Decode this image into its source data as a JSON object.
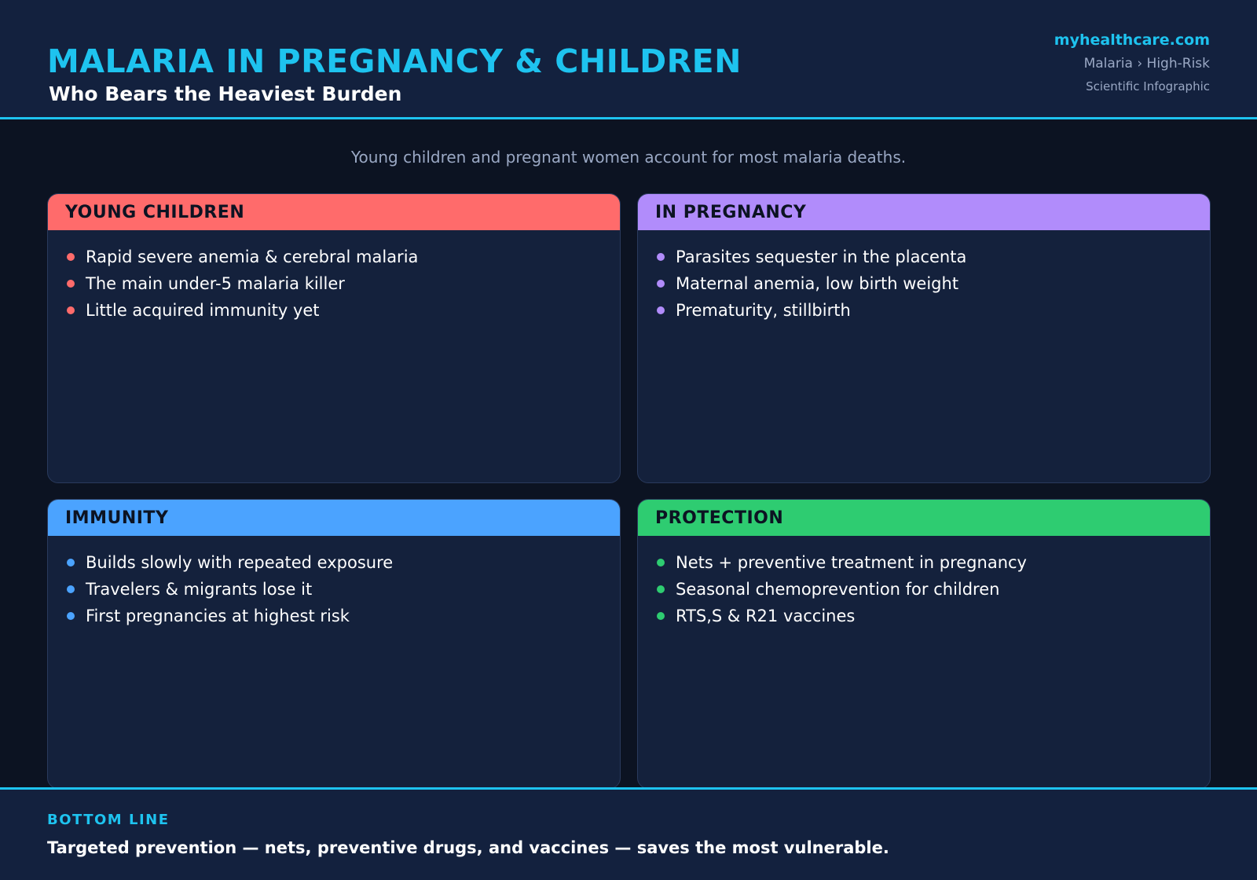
{
  "header": {
    "title": "MALARIA IN PREGNANCY & CHILDREN",
    "subtitle": "Who Bears the Heaviest Burden",
    "site": "myhealthcare.com",
    "breadcrumb": "Malaria › High-Risk",
    "kind": "Scientific Infographic"
  },
  "intro": "Young children and pregnant women account for most malaria deaths.",
  "colors": {
    "accent": "#1ec3ef",
    "children": "#ff6b6b",
    "pregnancy": "#b18cfb",
    "immunity": "#4ba3ff",
    "protection": "#2ecc71"
  },
  "cards": [
    {
      "title": "YOUNG CHILDREN",
      "items": [
        "Rapid severe anemia & cerebral malaria",
        "The main under-5 malaria killer",
        "Little acquired immunity yet"
      ]
    },
    {
      "title": "IN PREGNANCY",
      "items": [
        "Parasites sequester in the placenta",
        "Maternal anemia, low birth weight",
        "Prematurity, stillbirth"
      ]
    },
    {
      "title": "IMMUNITY",
      "items": [
        "Builds slowly with repeated exposure",
        "Travelers & migrants lose it",
        "First pregnancies at highest risk"
      ]
    },
    {
      "title": "PROTECTION",
      "items": [
        "Nets + preventive treatment in pregnancy",
        "Seasonal chemoprevention for children",
        "RTS,S & R21 vaccines"
      ]
    }
  ],
  "footer": {
    "label": "BOTTOM LINE",
    "text": "Targeted prevention — nets, preventive drugs, and vaccines — saves the most vulnerable."
  }
}
